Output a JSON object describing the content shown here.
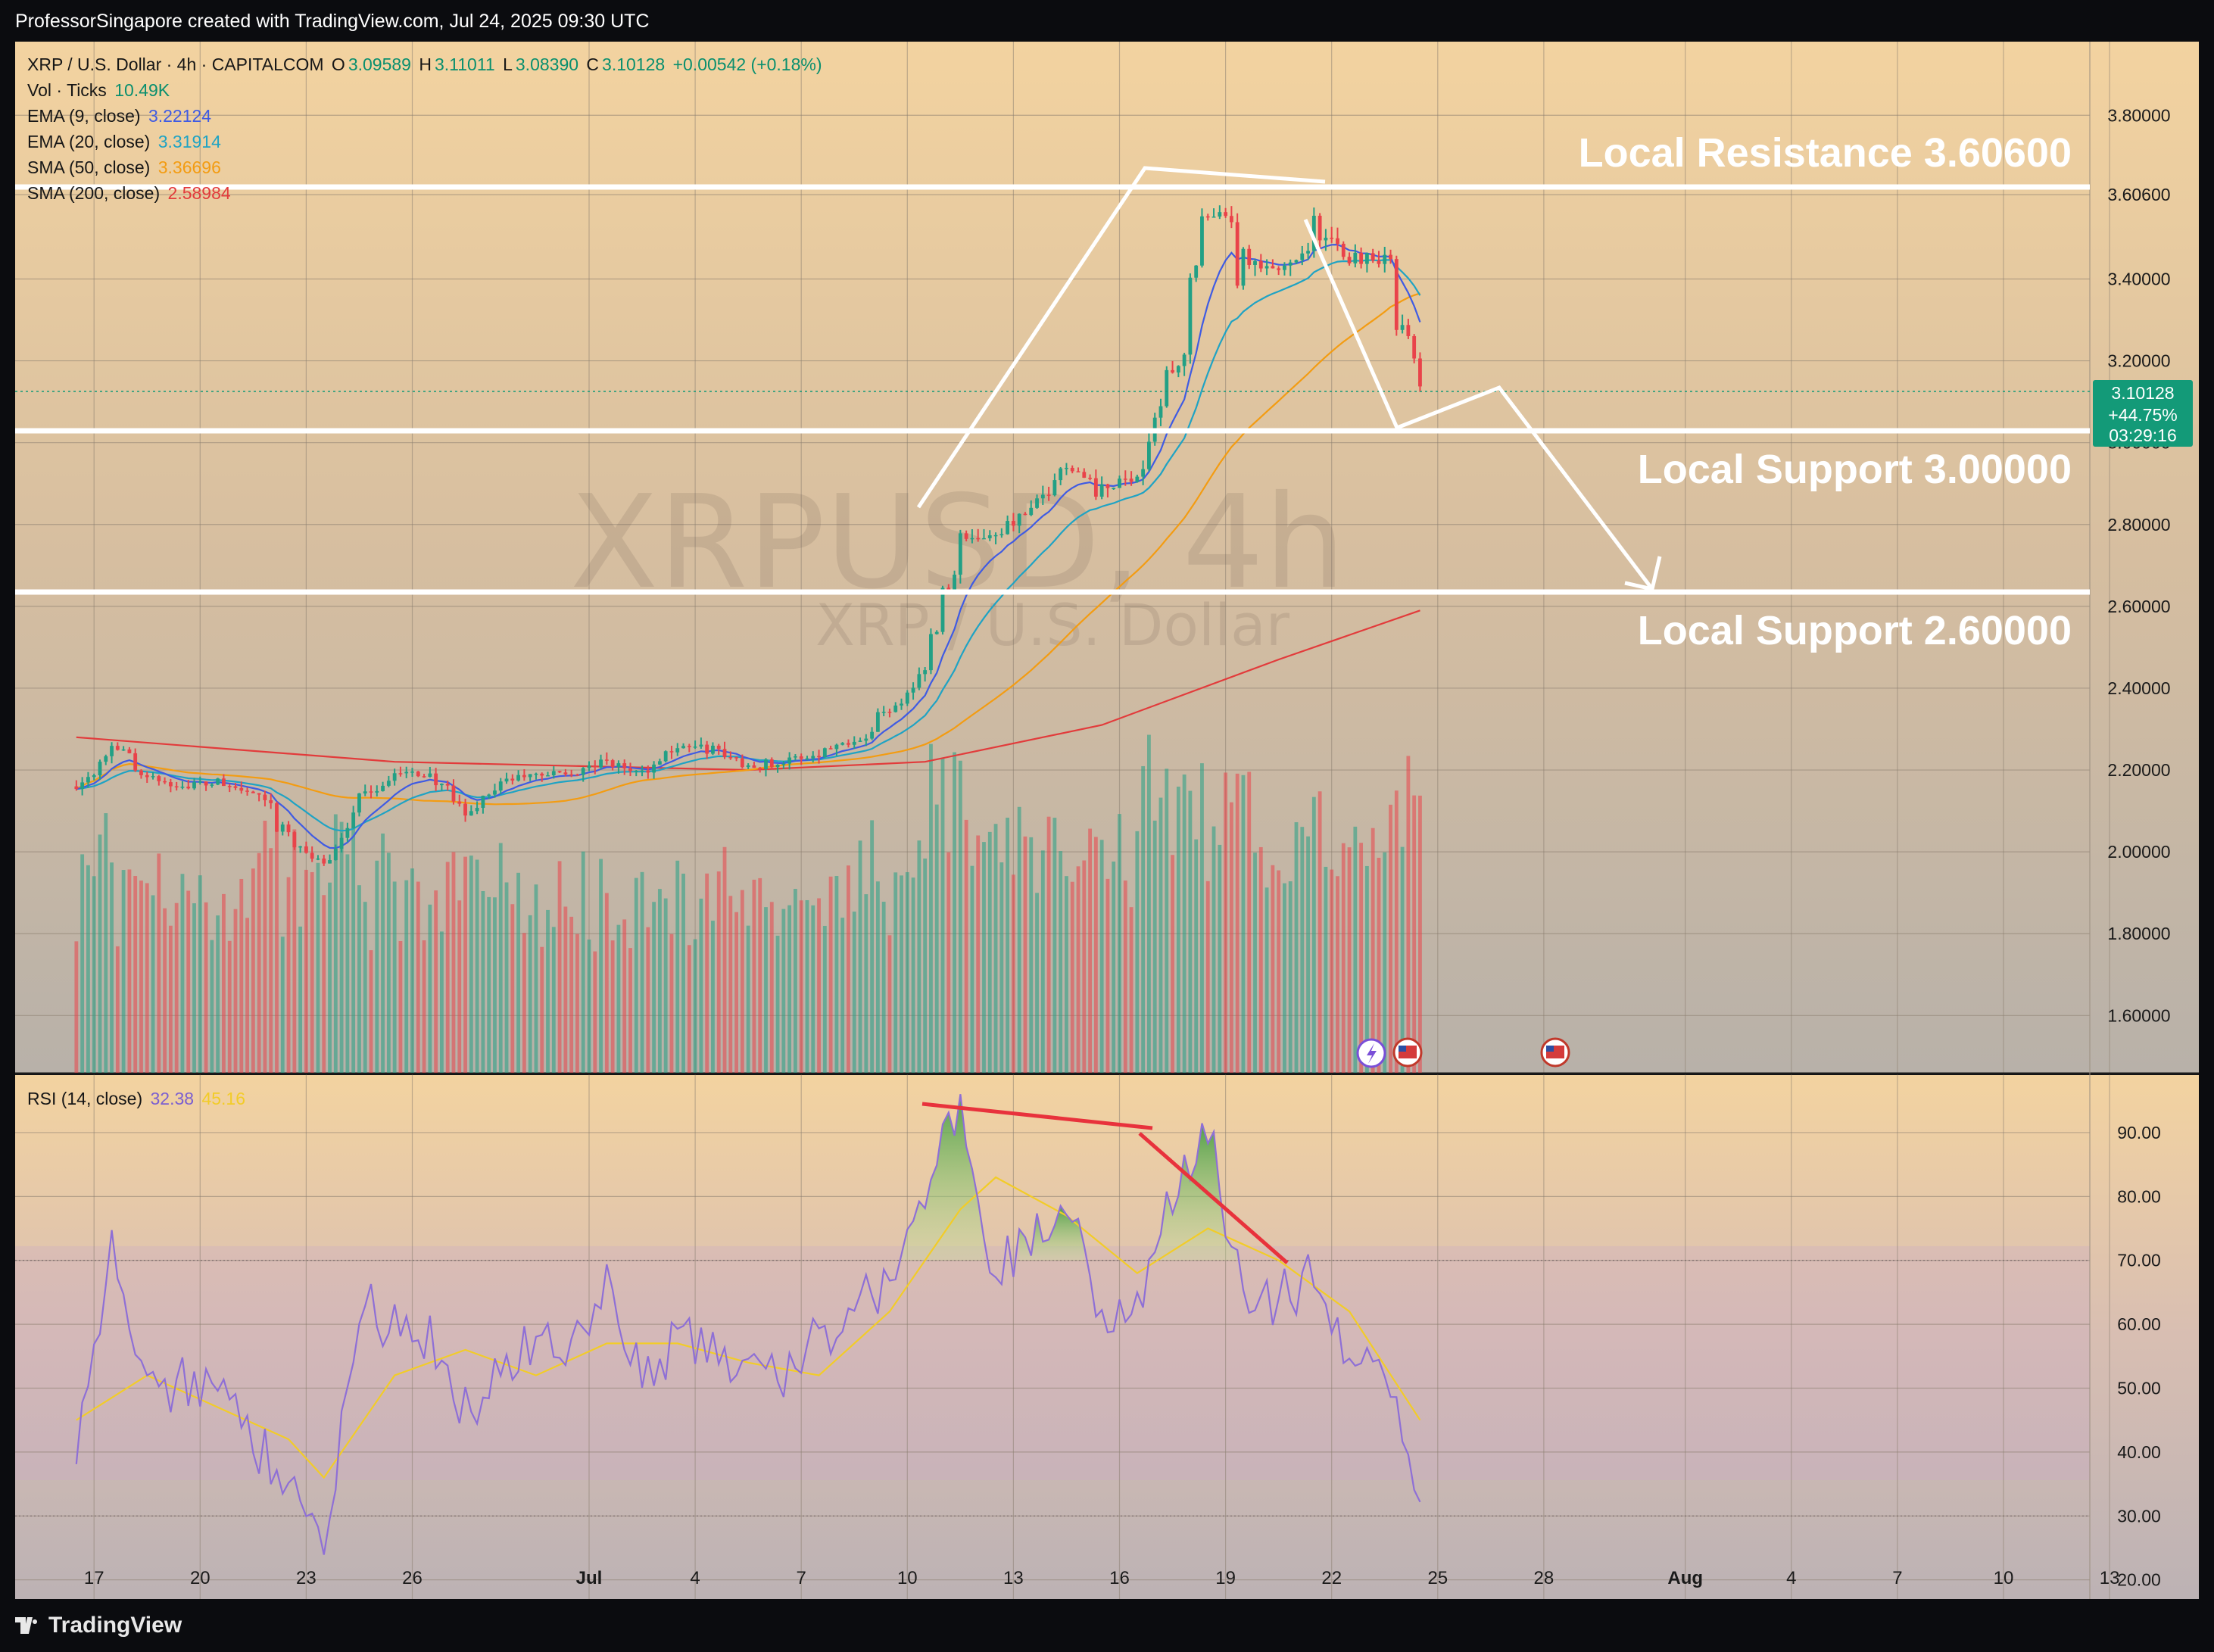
{
  "header": {
    "attribution": "ProfessorSingapore created with TradingView.com, Jul 24, 2025 09:30 UTC"
  },
  "footer": {
    "brand": "TradingView"
  },
  "symbol": {
    "title": "XRP / U.S. Dollar · 4h · CAPITALCOM",
    "o_label": "O",
    "o": "3.09589",
    "h_label": "H",
    "h": "3.11011",
    "l_label": "L",
    "l": "3.08390",
    "c_label": "C",
    "c": "3.10128",
    "change": "+0.00542 (+0.18%)",
    "watermark_main": "XRPUSD, 4h",
    "watermark_sub": "XRP / U.S. Dollar"
  },
  "indicators": {
    "vol": {
      "label": "Vol · Ticks",
      "value": "10.49K"
    },
    "ema9": {
      "label": "EMA (9, close)",
      "value": "3.22124",
      "color": "#3f5be3"
    },
    "ema20": {
      "label": "EMA (20, close)",
      "value": "3.31914",
      "color": "#1fa3c4"
    },
    "sma50": {
      "label": "SMA (50, close)",
      "value": "3.36696",
      "color": "#f39c12"
    },
    "sma200": {
      "label": "SMA (200, close)",
      "value": "2.58984",
      "color": "#e23b3b"
    },
    "rsi": {
      "label": "RSI (14, close)",
      "value": "32.38",
      "ma_value": "45.16",
      "color": "#8e6fd6",
      "ma_color": "#f2cc28"
    }
  },
  "price_badge": {
    "price": "3.10128",
    "change_pct": "+44.75%",
    "countdown": "03:29:16",
    "color": "#139a78"
  },
  "annotations": {
    "resistance": "Local Resistance 3.60600",
    "support1": "Local Support 3.00000",
    "support2": "Local Support 2.60000"
  },
  "colors": {
    "up": "#22a085",
    "down": "#e9434a",
    "line": "#ffffff",
    "divergence": "#e8323c"
  },
  "chart_data": [
    {
      "type": "candlestick",
      "title": "XRP / U.S. Dollar · 4h · CAPITALCOM",
      "y_axis_ticks": [
        "3.80000",
        "3.60600",
        "3.40000",
        "3.20000",
        "3.00000",
        "2.80000",
        "2.60000",
        "2.40000",
        "2.20000",
        "2.00000",
        "1.80000",
        "1.60000"
      ],
      "ylim": [
        1.46,
        3.98
      ],
      "x_axis_ticks": [
        "17",
        "20",
        "23",
        "26",
        "Jul",
        "4",
        "7",
        "10",
        "13",
        "16",
        "19",
        "22",
        "25",
        "28",
        "Aug",
        "4",
        "7",
        "10",
        "13"
      ],
      "x_tick_dates": [
        "2025-06-17",
        "2025-06-20",
        "2025-06-23",
        "2025-06-26",
        "2025-07-01",
        "2025-07-04",
        "2025-07-07",
        "2025-07-10",
        "2025-07-13",
        "2025-07-16",
        "2025-07-19",
        "2025-07-22",
        "2025-07-25",
        "2025-07-28",
        "2025-08-01",
        "2025-08-04",
        "2025-08-07",
        "2025-08-10",
        "2025-08-13"
      ],
      "price_path": [
        [
          "2025-06-16",
          2.16
        ],
        [
          "2025-06-17",
          2.27
        ],
        [
          "2025-06-18",
          2.18
        ],
        [
          "2025-06-19",
          2.16
        ],
        [
          "2025-06-20",
          2.17
        ],
        [
          "2025-06-21",
          2.14
        ],
        [
          "2025-06-22",
          2.04
        ],
        [
          "2025-06-23",
          1.96
        ],
        [
          "2025-06-24",
          2.13
        ],
        [
          "2025-06-25",
          2.19
        ],
        [
          "2025-06-26",
          2.19
        ],
        [
          "2025-06-27",
          2.09
        ],
        [
          "2025-06-28",
          2.17
        ],
        [
          "2025-06-29",
          2.19
        ],
        [
          "2025-06-30",
          2.19
        ],
        [
          "2025-07-01",
          2.22
        ],
        [
          "2025-07-02",
          2.19
        ],
        [
          "2025-07-03",
          2.26
        ],
        [
          "2025-07-04",
          2.25
        ],
        [
          "2025-07-05",
          2.21
        ],
        [
          "2025-07-06",
          2.22
        ],
        [
          "2025-07-07",
          2.24
        ],
        [
          "2025-07-08",
          2.28
        ],
        [
          "2025-07-09",
          2.35
        ],
        [
          "2025-07-10",
          2.45
        ],
        [
          "2025-07-11",
          2.76
        ],
        [
          "2025-07-12",
          2.78
        ],
        [
          "2025-07-13",
          2.83
        ],
        [
          "2025-07-14",
          2.95
        ],
        [
          "2025-07-15",
          2.88
        ],
        [
          "2025-07-16",
          2.92
        ],
        [
          "2025-07-17",
          3.18
        ],
        [
          "2025-07-18",
          3.55
        ],
        [
          "2025-07-19",
          3.43
        ],
        [
          "2025-07-20",
          3.42
        ],
        [
          "2025-07-21",
          3.52
        ],
        [
          "2025-07-22",
          3.45
        ],
        [
          "2025-07-23",
          3.46
        ],
        [
          "2025-07-24",
          3.1
        ]
      ],
      "sma200_path": [
        [
          "2025-06-16",
          2.28
        ],
        [
          "2025-06-25",
          2.22
        ],
        [
          "2025-07-05",
          2.2
        ],
        [
          "2025-07-10",
          2.22
        ],
        [
          "2025-07-15",
          2.31
        ],
        [
          "2025-07-20",
          2.47
        ],
        [
          "2025-07-24",
          2.59
        ]
      ],
      "volume_note": "volume bars share the price panel, bottom band"
    },
    {
      "type": "line",
      "title": "RSI (14, close)",
      "y_axis_ticks": [
        "90.00",
        "80.00",
        "70.00",
        "60.00",
        "50.00",
        "40.00",
        "30.00",
        "20.00"
      ],
      "ylim": [
        17,
        99
      ],
      "rsi_path": [
        [
          "2025-06-16",
          42
        ],
        [
          "2025-06-17",
          72
        ],
        [
          "2025-06-18",
          48
        ],
        [
          "2025-06-19",
          52
        ],
        [
          "2025-06-20",
          48
        ],
        [
          "2025-06-21",
          42
        ],
        [
          "2025-06-22",
          36
        ],
        [
          "2025-06-23",
          24
        ],
        [
          "2025-06-24",
          63
        ],
        [
          "2025-06-25",
          60
        ],
        [
          "2025-06-26",
          57
        ],
        [
          "2025-06-27",
          46
        ],
        [
          "2025-06-28",
          52
        ],
        [
          "2025-06-29",
          58
        ],
        [
          "2025-06-30",
          56
        ],
        [
          "2025-07-01",
          66
        ],
        [
          "2025-07-02",
          50
        ],
        [
          "2025-07-03",
          58
        ],
        [
          "2025-07-04",
          56
        ],
        [
          "2025-07-05",
          52
        ],
        [
          "2025-07-06",
          52
        ],
        [
          "2025-07-07",
          58
        ],
        [
          "2025-07-08",
          62
        ],
        [
          "2025-07-09",
          68
        ],
        [
          "2025-07-10",
          80
        ],
        [
          "2025-07-11",
          94
        ],
        [
          "2025-07-12",
          68
        ],
        [
          "2025-07-13",
          75
        ],
        [
          "2025-07-14",
          78
        ],
        [
          "2025-07-15",
          62
        ],
        [
          "2025-07-16",
          64
        ],
        [
          "2025-07-17",
          80
        ],
        [
          "2025-07-18",
          90
        ],
        [
          "2025-07-19",
          65
        ],
        [
          "2025-07-20",
          64
        ],
        [
          "2025-07-21",
          68
        ],
        [
          "2025-07-22",
          52
        ],
        [
          "2025-07-23",
          56
        ],
        [
          "2025-07-24",
          32
        ]
      ],
      "ma_path": [
        [
          "2025-06-16",
          45
        ],
        [
          "2025-06-18",
          52
        ],
        [
          "2025-06-20",
          47
        ],
        [
          "2025-06-22",
          42
        ],
        [
          "2025-06-23",
          36
        ],
        [
          "2025-06-25",
          52
        ],
        [
          "2025-06-27",
          56
        ],
        [
          "2025-06-29",
          52
        ],
        [
          "2025-07-01",
          57
        ],
        [
          "2025-07-03",
          57
        ],
        [
          "2025-07-05",
          54
        ],
        [
          "2025-07-07",
          52
        ],
        [
          "2025-07-09",
          62
        ],
        [
          "2025-07-11",
          78
        ],
        [
          "2025-07-12",
          83
        ],
        [
          "2025-07-14",
          77
        ],
        [
          "2025-07-16",
          68
        ],
        [
          "2025-07-18",
          75
        ],
        [
          "2025-07-20",
          70
        ],
        [
          "2025-07-22",
          62
        ],
        [
          "2025-07-24",
          45
        ]
      ]
    }
  ]
}
